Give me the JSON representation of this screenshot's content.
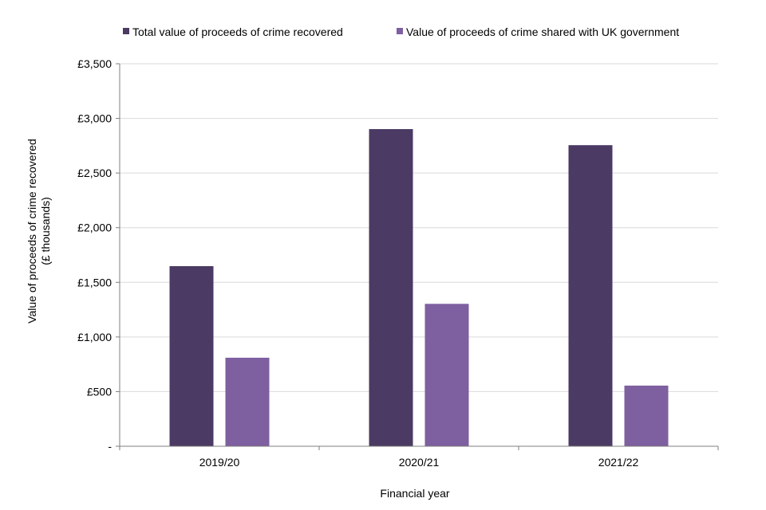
{
  "chart_data": {
    "type": "bar",
    "title": "",
    "categories": [
      "2019/20",
      "2020/21",
      "2021/22"
    ],
    "series": [
      {
        "name": "Total value of proceeds of crime recovered",
        "color": "#4b3a63",
        "values": [
          1648,
          2902,
          2755
        ]
      },
      {
        "name": "Value of proceeds of crime shared with UK government",
        "color": "#7e5f9f",
        "values": [
          810,
          1303,
          555
        ]
      }
    ],
    "xlabel": "Financial year",
    "ylabel_lines": [
      "Value of proceeds of crime recovered",
      "(£ thousands)"
    ],
    "ylim": [
      0,
      3500
    ],
    "ytick_values": [
      0,
      500,
      1000,
      1500,
      2000,
      2500,
      3000,
      3500
    ],
    "ytick_labels": [
      "-",
      "£500",
      "£1,000",
      "£1,500",
      "£2,000",
      "£2,500",
      "£3,000",
      "£3,500"
    ],
    "grid": true,
    "legend_position": "top"
  }
}
